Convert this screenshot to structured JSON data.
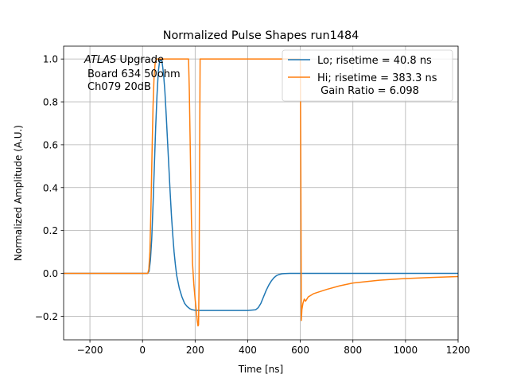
{
  "chart_data": {
    "type": "line",
    "title": "Normalized Pulse Shapes run1484",
    "xlabel": "Time [ns]",
    "ylabel": "Normalized Amplitude (A.U.)",
    "xlim": [
      -300,
      1200
    ],
    "ylim": [
      -0.31,
      1.06
    ],
    "grid": true,
    "x_ticks": [
      -200,
      0,
      200,
      400,
      600,
      800,
      1000,
      1200
    ],
    "x_tick_labels": [
      "−200",
      "0",
      "200",
      "400",
      "600",
      "800",
      "1000",
      "1200"
    ],
    "y_ticks": [
      -0.2,
      0.0,
      0.2,
      0.4,
      0.6,
      0.8,
      1.0
    ],
    "y_tick_labels": [
      "−0.2",
      "0.0",
      "0.2",
      "0.4",
      "0.6",
      "0.8",
      "1.0"
    ],
    "annotation": {
      "line1_italic": "ATLAS",
      "line1_rest": " Upgrade",
      "line2": "Board 634 50ohm",
      "line3": "Ch079 20dB"
    },
    "legend_placement": "top-right",
    "series": [
      {
        "name": "Lo; risetime = 40.8 ns",
        "color": "#1f77b4",
        "x": [
          -300,
          20,
          25,
          30,
          35,
          40,
          45,
          50,
          55,
          60,
          65,
          70,
          75,
          80,
          85,
          90,
          95,
          100,
          105,
          110,
          115,
          120,
          125,
          130,
          140,
          150,
          160,
          170,
          180,
          190,
          200,
          220,
          250,
          300,
          350,
          400,
          430,
          440,
          450,
          460,
          470,
          480,
          490,
          500,
          510,
          520,
          530,
          540,
          560,
          600,
          700,
          800,
          1000,
          1200
        ],
        "y": [
          0.0,
          0.0,
          0.01,
          0.06,
          0.16,
          0.32,
          0.5,
          0.68,
          0.83,
          0.94,
          0.99,
          1.0,
          0.98,
          0.93,
          0.85,
          0.74,
          0.62,
          0.5,
          0.38,
          0.27,
          0.18,
          0.1,
          0.04,
          -0.01,
          -0.07,
          -0.11,
          -0.14,
          -0.155,
          -0.165,
          -0.17,
          -0.172,
          -0.173,
          -0.173,
          -0.173,
          -0.173,
          -0.173,
          -0.17,
          -0.16,
          -0.14,
          -0.11,
          -0.08,
          -0.055,
          -0.035,
          -0.02,
          -0.01,
          -0.005,
          -0.002,
          -0.001,
          0.0,
          0.0,
          0.0,
          0.0,
          0.0,
          0.0
        ]
      },
      {
        "name": "Hi; risetime = 383.3 ns",
        "name_line2": " Gain Ratio = 6.098",
        "color": "#ff7f0e",
        "x": [
          -300,
          20,
          24,
          28,
          32,
          36,
          40,
          44,
          48,
          52,
          60,
          100,
          150,
          175,
          178,
          182,
          186,
          190,
          195,
          200,
          205,
          208,
          211,
          213,
          215,
          217,
          219,
          221,
          600,
          602,
          604,
          606,
          610,
          615,
          620,
          630,
          650,
          700,
          750,
          800,
          900,
          1000,
          1100,
          1200
        ],
        "y": [
          0.0,
          0.0,
          0.02,
          0.1,
          0.3,
          0.55,
          0.78,
          0.92,
          0.98,
          1.0,
          1.0,
          1.0,
          1.0,
          1.0,
          0.85,
          0.55,
          0.25,
          0.05,
          -0.05,
          -0.12,
          -0.18,
          -0.22,
          -0.245,
          -0.24,
          -0.05,
          0.5,
          1.0,
          1.0,
          1.0,
          0.5,
          -0.22,
          -0.17,
          -0.14,
          -0.12,
          -0.13,
          -0.11,
          -0.095,
          -0.075,
          -0.058,
          -0.045,
          -0.032,
          -0.024,
          -0.019,
          -0.015
        ]
      }
    ]
  }
}
